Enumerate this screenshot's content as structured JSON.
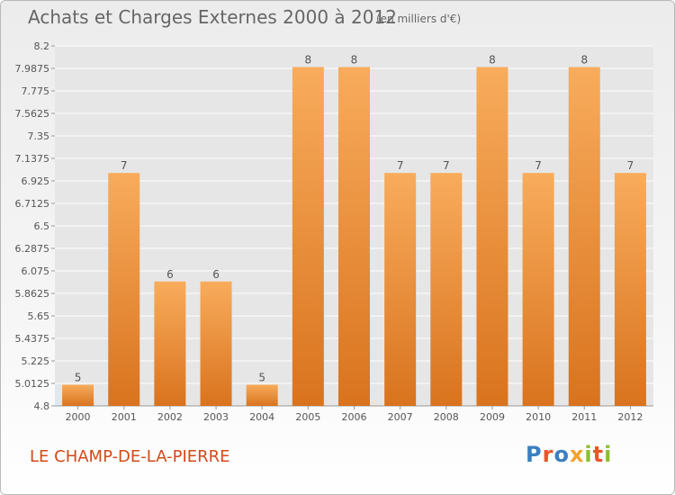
{
  "header": {
    "title": "Achats et Charges Externes 2000 à 2012",
    "unit": "(en milliers d'€)"
  },
  "footer": {
    "commune": "LE CHAMP-DE-LA-PIERRE",
    "logo_text": "Proxiti",
    "logo_colors": [
      "#3a7fc1",
      "#e9562a",
      "#3a7fc1",
      "#f2a22b",
      "#8bbf2f",
      "#e9562a",
      "#8bbf2f"
    ]
  },
  "colors": {
    "bar_light": "#f8ac5c",
    "bar_dark": "#d9731e",
    "grid": "#ffffff",
    "text": "#555555",
    "commune": "#d14b1a"
  },
  "chart_data": {
    "type": "bar",
    "categories": [
      "2000",
      "2001",
      "2002",
      "2003",
      "2004",
      "2005",
      "2006",
      "2007",
      "2008",
      "2009",
      "2010",
      "2011",
      "2012"
    ],
    "values": [
      5,
      7,
      6,
      6,
      5,
      8,
      8,
      7,
      7,
      8,
      7,
      8,
      7
    ],
    "plotted": [
      5.0,
      7.0,
      5.975,
      5.975,
      5.0,
      8.0,
      8.0,
      7.0,
      7.0,
      8.0,
      7.0,
      8.0,
      7.0
    ],
    "ylim": [
      4.8,
      8.2
    ],
    "yticks": [
      "4.8",
      "5.0125",
      "5.225",
      "5.4375",
      "5.65",
      "5.8625",
      "6.075",
      "6.2875",
      "6.5",
      "6.7125",
      "6.925",
      "7.1375",
      "7.35",
      "7.5625",
      "7.775",
      "7.9875",
      "8.2"
    ],
    "grid": true,
    "title": "Achats et Charges Externes 2000 à 2012",
    "xlabel": "",
    "ylabel": ""
  }
}
